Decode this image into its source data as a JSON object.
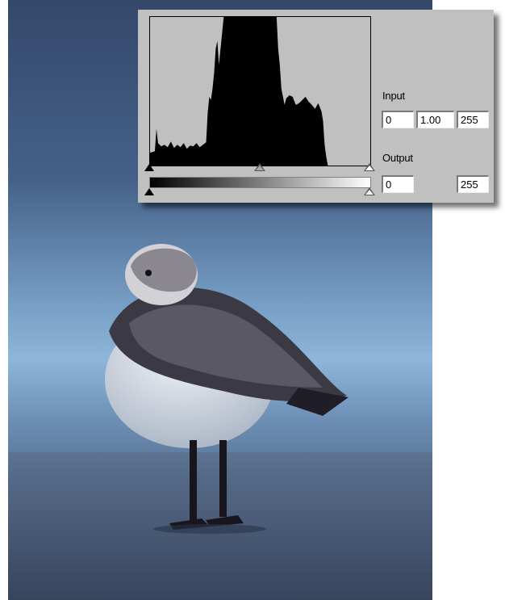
{
  "levels": {
    "input": {
      "label": "Input",
      "black": "0",
      "gamma": "1.00",
      "white": "255"
    },
    "output": {
      "label": "Output",
      "black": "0",
      "white": "255"
    }
  },
  "colors": {
    "dialog_bg": "#c0c0c0",
    "histogram_fill": "#000000",
    "sky_top": "#3a5170",
    "sky_horizon": "#8db4d8",
    "sand": "#3f4e68"
  }
}
